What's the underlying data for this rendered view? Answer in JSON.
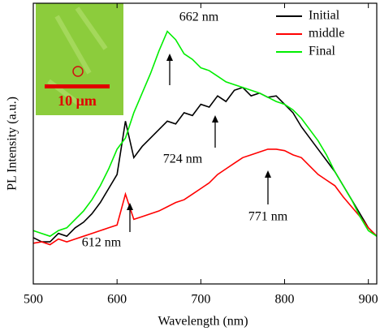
{
  "chart_data": {
    "type": "line",
    "x_label": "Wavelength (nm)",
    "y_label": "PL Intensity (a.u.)",
    "x": [
      500,
      510,
      520,
      530,
      540,
      550,
      560,
      570,
      580,
      590,
      600,
      610,
      620,
      630,
      640,
      650,
      660,
      670,
      680,
      690,
      700,
      710,
      720,
      730,
      740,
      750,
      760,
      770,
      780,
      790,
      800,
      810,
      820,
      830,
      840,
      850,
      860,
      870,
      880,
      890,
      900,
      910
    ],
    "series": [
      {
        "name": "Initial",
        "color": "#000000",
        "values": [
          16.5,
          15,
          15,
          18,
          17,
          20,
          22,
          25,
          29,
          34,
          39,
          58,
          45,
          49,
          52,
          55,
          58,
          57,
          61,
          60,
          64,
          63,
          67,
          65,
          69,
          70,
          67,
          68,
          66.5,
          67,
          64,
          61,
          56,
          52,
          48,
          44,
          40,
          35,
          30,
          25,
          20,
          17
        ]
      },
      {
        "name": "middle",
        "color": "#ff0000",
        "values": [
          14.5,
          15,
          14,
          16,
          15,
          16,
          17,
          18,
          19,
          20,
          21,
          32,
          23,
          24,
          25,
          26,
          27.5,
          29,
          30,
          32,
          34,
          36,
          39,
          41,
          43,
          45,
          46,
          47,
          48,
          48,
          47.5,
          46,
          45,
          42,
          39,
          37,
          35,
          31,
          27.5,
          24,
          20,
          17
        ]
      },
      {
        "name": "Final",
        "color": "#00ee00",
        "values": [
          19,
          18,
          17,
          19,
          20,
          23,
          26,
          30,
          35,
          41,
          48,
          52,
          61,
          68,
          75,
          83,
          90,
          87,
          82,
          80,
          77,
          76,
          74,
          72,
          71,
          70,
          69,
          68,
          66.5,
          65,
          64,
          62,
          59,
          55,
          51,
          46,
          40,
          35,
          30,
          24,
          19,
          17
        ]
      }
    ],
    "xlim": [
      500,
      910
    ],
    "ylim": [
      0,
      100
    ],
    "xticks": [
      500,
      600,
      700,
      800,
      900
    ],
    "legend": "top-right",
    "annotations": [
      "662 nm",
      "724 nm",
      "612 nm",
      "771 nm"
    ],
    "inset_label": "10 μm"
  }
}
